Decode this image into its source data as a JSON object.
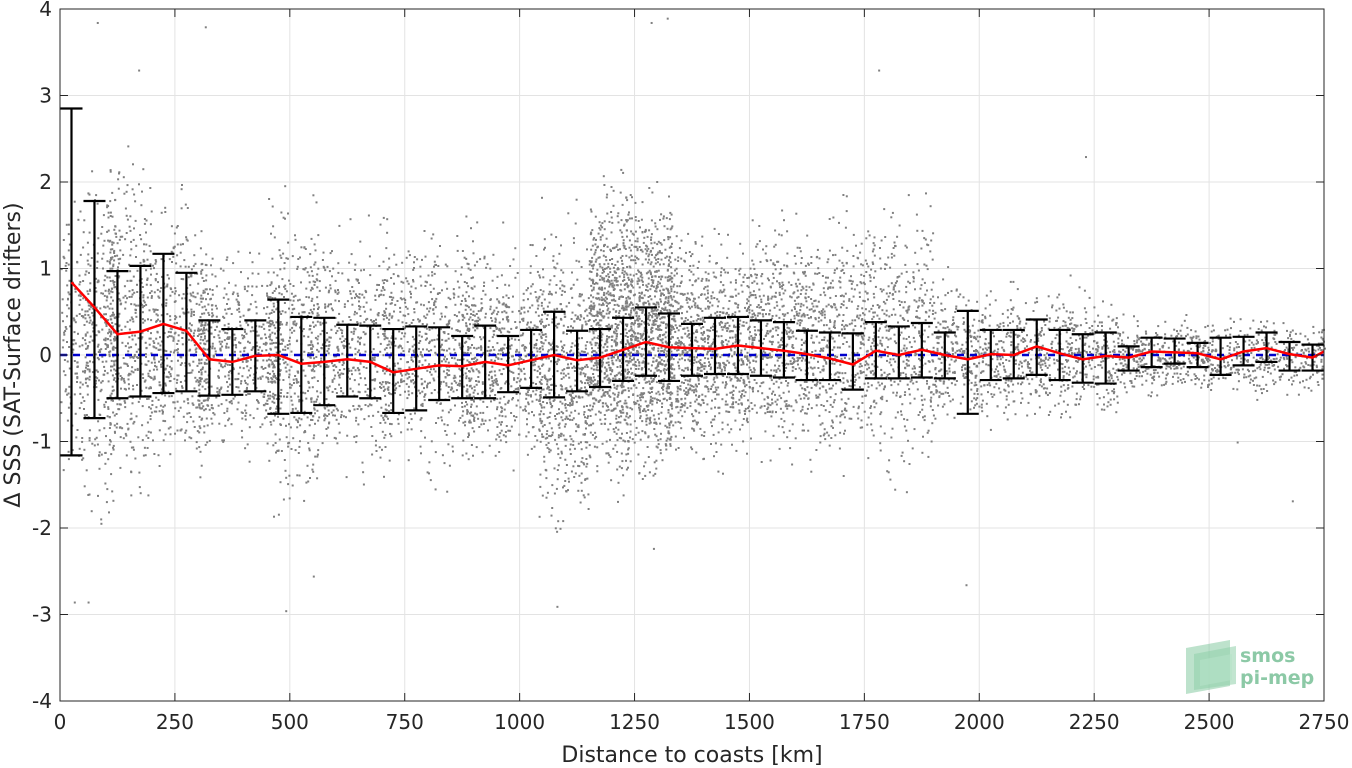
{
  "chart_data": {
    "type": "scatter",
    "title": "",
    "xlabel": "Distance to coasts [km]",
    "ylabel": "Δ SSS (SAT-Surface drifters)",
    "xlim": [
      0,
      2750
    ],
    "ylim": [
      -4,
      4
    ],
    "xticks": [
      0,
      250,
      500,
      750,
      1000,
      1250,
      1500,
      1750,
      2000,
      2250,
      2500,
      2750
    ],
    "yticks": [
      -4,
      -3,
      -2,
      -1,
      0,
      1,
      2,
      3,
      4
    ],
    "grid": true,
    "colors": {
      "scatter": "#808080",
      "mean": "#ff0000",
      "zero_line": "#0000cc",
      "errorbar": "#000000"
    },
    "series": [
      {
        "type": "errorbar",
        "x": [
          25,
          75,
          125,
          175,
          225,
          275,
          325,
          375,
          425,
          475,
          525,
          575,
          625,
          675,
          725,
          775,
          825,
          875,
          925,
          975,
          1025,
          1075,
          1125,
          1175,
          1225,
          1275,
          1325,
          1375,
          1425,
          1475,
          1525,
          1575,
          1625,
          1675,
          1725,
          1775,
          1825,
          1875,
          1925,
          1975,
          2025,
          2075,
          2125,
          2175,
          2225,
          2275,
          2325,
          2375,
          2425,
          2475,
          2525,
          2575,
          2625,
          2675,
          2725
        ],
        "upper": [
          2.85,
          1.78,
          0.97,
          1.03,
          1.17,
          0.95,
          0.4,
          0.3,
          0.4,
          0.64,
          0.44,
          0.43,
          0.35,
          0.34,
          0.3,
          0.33,
          0.32,
          0.22,
          0.34,
          0.22,
          0.29,
          0.5,
          0.28,
          0.3,
          0.43,
          0.55,
          0.48,
          0.36,
          0.43,
          0.44,
          0.4,
          0.38,
          0.28,
          0.26,
          0.25,
          0.38,
          0.33,
          0.37,
          0.26,
          0.51,
          0.29,
          0.29,
          0.41,
          0.29,
          0.24,
          0.26,
          0.1,
          0.2,
          0.19,
          0.14,
          0.2,
          0.21,
          0.26,
          0.15,
          0.12
        ],
        "lower": [
          -1.16,
          -0.73,
          -0.5,
          -0.48,
          -0.44,
          -0.42,
          -0.47,
          -0.46,
          -0.42,
          -0.68,
          -0.67,
          -0.58,
          -0.48,
          -0.5,
          -0.67,
          -0.64,
          -0.52,
          -0.5,
          -0.5,
          -0.43,
          -0.38,
          -0.49,
          -0.42,
          -0.37,
          -0.3,
          -0.24,
          -0.3,
          -0.24,
          -0.22,
          -0.22,
          -0.24,
          -0.26,
          -0.29,
          -0.29,
          -0.4,
          -0.27,
          -0.27,
          -0.26,
          -0.27,
          -0.68,
          -0.29,
          -0.27,
          -0.23,
          -0.29,
          -0.32,
          -0.33,
          -0.18,
          -0.14,
          -0.1,
          -0.14,
          -0.23,
          -0.12,
          -0.08,
          -0.18,
          -0.18
        ]
      },
      {
        "type": "line",
        "x": [
          25,
          75,
          125,
          175,
          225,
          275,
          325,
          375,
          425,
          475,
          525,
          575,
          625,
          675,
          725,
          775,
          825,
          875,
          925,
          975,
          1025,
          1075,
          1125,
          1175,
          1225,
          1275,
          1325,
          1375,
          1425,
          1475,
          1525,
          1575,
          1625,
          1675,
          1725,
          1775,
          1825,
          1875,
          1925,
          1975,
          2025,
          2075,
          2125,
          2175,
          2225,
          2275,
          2325,
          2375,
          2425,
          2475,
          2525,
          2575,
          2625,
          2675,
          2725,
          2750
        ],
        "y": [
          0.84,
          0.55,
          0.24,
          0.27,
          0.36,
          0.28,
          -0.05,
          -0.08,
          -0.01,
          0.0,
          -0.1,
          -0.08,
          -0.05,
          -0.08,
          -0.2,
          -0.16,
          -0.12,
          -0.13,
          -0.08,
          -0.12,
          -0.06,
          0.0,
          -0.06,
          -0.03,
          0.06,
          0.15,
          0.09,
          0.08,
          0.07,
          0.11,
          0.08,
          0.05,
          0.01,
          -0.04,
          -0.11,
          0.05,
          0.0,
          0.06,
          0.0,
          -0.05,
          0.01,
          0.0,
          0.1,
          0.02,
          -0.05,
          -0.01,
          -0.03,
          0.04,
          0.03,
          0.02,
          -0.05,
          0.04,
          0.08,
          0.01,
          -0.03,
          0.04
        ]
      },
      {
        "type": "hline",
        "y": 0
      }
    ],
    "scatter_clusters": [
      {
        "x0": 0,
        "x1": 60,
        "ymin": -1.4,
        "ymax": 2.6,
        "n": 150
      },
      {
        "x0": 50,
        "x1": 120,
        "ymin": -1.8,
        "ymax": 3.2,
        "n": 280
      },
      {
        "x0": 100,
        "x1": 200,
        "ymin": -1.8,
        "ymax": 3.3,
        "n": 420
      },
      {
        "x0": 200,
        "x1": 320,
        "ymin": -1.4,
        "ymax": 2.7,
        "n": 450
      },
      {
        "x0": 300,
        "x1": 480,
        "ymin": -1.3,
        "ymax": 1.6,
        "n": 520
      },
      {
        "x0": 450,
        "x1": 560,
        "ymin": -2.4,
        "ymax": 2.2,
        "n": 380
      },
      {
        "x0": 540,
        "x1": 720,
        "ymin": -1.6,
        "ymax": 2.0,
        "n": 520
      },
      {
        "x0": 700,
        "x1": 900,
        "ymin": -1.5,
        "ymax": 2.0,
        "n": 620
      },
      {
        "x0": 880,
        "x1": 1050,
        "ymin": -1.6,
        "ymax": 1.6,
        "n": 620
      },
      {
        "x0": 1040,
        "x1": 1150,
        "ymin": -2.9,
        "ymax": 1.6,
        "n": 520
      },
      {
        "x0": 1150,
        "x1": 1330,
        "ymin": -1.2,
        "ymax": 3.0,
        "n": 1700
      },
      {
        "x0": 1320,
        "x1": 1500,
        "ymin": -1.3,
        "ymax": 2.0,
        "n": 900
      },
      {
        "x0": 1500,
        "x1": 1700,
        "ymin": -1.2,
        "ymax": 2.3,
        "n": 800
      },
      {
        "x0": 1700,
        "x1": 1900,
        "ymin": -1.2,
        "ymax": 2.6,
        "n": 650
      },
      {
        "x0": 1900,
        "x1": 2100,
        "ymin": -1.0,
        "ymax": 1.1,
        "n": 500
      },
      {
        "x0": 2100,
        "x1": 2300,
        "ymin": -0.9,
        "ymax": 1.0,
        "n": 450
      },
      {
        "x0": 2300,
        "x1": 2500,
        "ymin": -0.6,
        "ymax": 0.5,
        "n": 380
      },
      {
        "x0": 2500,
        "x1": 2750,
        "ymin": -0.6,
        "ymax": 0.5,
        "n": 380
      }
    ],
    "scatter_outliers": [
      [
        30,
        -2.85
      ],
      [
        60,
        -2.85
      ],
      [
        490,
        -2.95
      ],
      [
        550,
        -2.55
      ],
      [
        1080,
        -2.9
      ],
      [
        1290,
        -2.23
      ],
      [
        1970,
        -2.65
      ],
      [
        2230,
        2.3
      ],
      [
        2680,
        -1.68
      ],
      [
        2560,
        -1.0
      ],
      [
        1320,
        3.9
      ],
      [
        80,
        3.85
      ],
      [
        170,
        3.3
      ],
      [
        315,
        3.8
      ],
      [
        1285,
        3.85
      ],
      [
        1780,
        3.3
      ]
    ],
    "logo": {
      "line1": "smos",
      "line2": "pi-mep"
    }
  }
}
